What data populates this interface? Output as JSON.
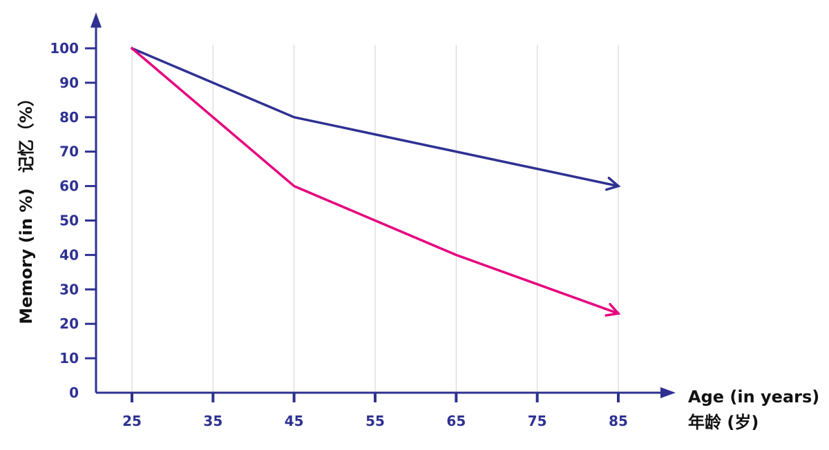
{
  "chart_data": {
    "type": "line",
    "x": [
      25,
      35,
      45,
      55,
      65,
      75,
      85
    ],
    "xlabel": "Age (in years)",
    "xlabel_cn": "年龄 (岁)",
    "ylabel": "Memory (in %)",
    "ylabel_cn": "记忆（%）",
    "ylim": [
      0,
      100
    ],
    "yticks": [
      0,
      10,
      20,
      30,
      40,
      50,
      60,
      70,
      80,
      90,
      100
    ],
    "grid": "vertical",
    "series": [
      {
        "color": "#2e3192",
        "points": [
          [
            25,
            100
          ],
          [
            45,
            80
          ],
          [
            85,
            60
          ]
        ]
      },
      {
        "color": "#e6007e",
        "points": [
          [
            25,
            100
          ],
          [
            45,
            60
          ],
          [
            65,
            40
          ],
          [
            85,
            23
          ]
        ]
      }
    ]
  },
  "colors": {
    "axis": "#2e3192",
    "grid": "#d0d0d0"
  }
}
